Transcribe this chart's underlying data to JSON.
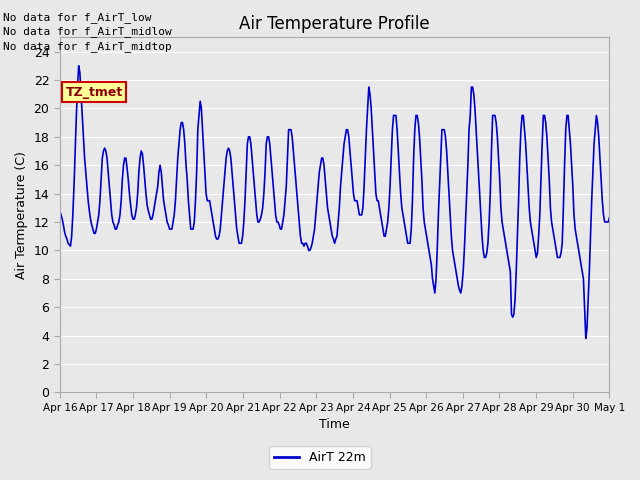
{
  "title": "Air Temperature Profile",
  "xlabel": "Time",
  "ylabel": "Air Termperature (C)",
  "legend_label": "AirT 22m",
  "legend_line_color": "#0000cc",
  "line_color": "#0000cc",
  "plot_bg_color": "#e8e8e8",
  "ylim": [
    0,
    25
  ],
  "yticks": [
    0,
    2,
    4,
    6,
    8,
    10,
    12,
    14,
    16,
    18,
    20,
    22,
    24
  ],
  "annotations": [
    "No data for f_AirT_low",
    "No data for f_AirT_midlow",
    "No data for f_AirT_midtop"
  ],
  "tz_label": "TZ_tmet",
  "x_labels": [
    "Apr 16",
    "Apr 17",
    "Apr 18",
    "Apr 19",
    "Apr 20",
    "Apr 21",
    "Apr 22",
    "Apr 23",
    "Apr 24",
    "Apr 25",
    "Apr 26",
    "Apr 27",
    "Apr 28",
    "Apr 29",
    "Apr 30",
    "May 1"
  ],
  "temp_data": [
    12.8,
    12.5,
    12.2,
    11.8,
    11.3,
    11.0,
    10.8,
    10.5,
    10.4,
    10.3,
    11.0,
    12.5,
    14.5,
    17.0,
    19.5,
    21.5,
    23.0,
    22.5,
    21.0,
    19.5,
    18.0,
    16.5,
    15.5,
    14.5,
    13.5,
    12.8,
    12.2,
    11.8,
    11.5,
    11.2,
    11.2,
    11.5,
    12.0,
    12.5,
    13.5,
    15.0,
    16.5,
    17.0,
    17.2,
    17.0,
    16.5,
    15.5,
    14.5,
    13.5,
    12.5,
    12.0,
    11.8,
    11.5,
    11.5,
    11.8,
    12.0,
    12.5,
    13.5,
    15.0,
    16.0,
    16.5,
    16.5,
    15.8,
    15.0,
    14.0,
    13.2,
    12.5,
    12.2,
    12.2,
    12.5,
    13.0,
    14.0,
    15.5,
    16.5,
    17.0,
    16.8,
    16.0,
    15.0,
    14.0,
    13.2,
    12.8,
    12.5,
    12.2,
    12.2,
    12.5,
    13.0,
    13.5,
    14.0,
    14.5,
    15.5,
    16.0,
    15.5,
    14.5,
    13.5,
    13.0,
    12.5,
    12.0,
    11.8,
    11.5,
    11.5,
    11.5,
    12.0,
    12.5,
    13.5,
    15.0,
    16.5,
    17.5,
    18.5,
    19.0,
    19.0,
    18.5,
    17.5,
    16.0,
    15.0,
    13.5,
    12.5,
    11.5,
    11.5,
    11.5,
    12.0,
    13.5,
    15.5,
    18.5,
    19.5,
    20.5,
    20.0,
    18.5,
    17.0,
    15.5,
    14.0,
    13.5,
    13.5,
    13.5,
    13.0,
    12.5,
    12.0,
    11.5,
    11.0,
    10.8,
    10.8,
    11.0,
    11.5,
    12.5,
    13.5,
    14.5,
    15.5,
    16.5,
    17.0,
    17.2,
    17.0,
    16.5,
    15.5,
    14.5,
    13.5,
    12.5,
    11.5,
    11.0,
    10.5,
    10.5,
    10.5,
    11.0,
    12.0,
    13.5,
    15.5,
    17.5,
    18.0,
    18.0,
    17.5,
    16.5,
    15.5,
    14.5,
    13.5,
    12.5,
    12.0,
    12.0,
    12.2,
    12.5,
    13.0,
    14.0,
    15.5,
    17.5,
    18.0,
    18.0,
    17.5,
    16.5,
    15.5,
    14.5,
    13.5,
    12.5,
    12.0,
    12.0,
    11.8,
    11.5,
    11.5,
    12.0,
    12.5,
    13.5,
    14.5,
    16.5,
    18.5,
    18.5,
    18.5,
    18.0,
    17.0,
    16.0,
    15.0,
    14.0,
    13.0,
    12.0,
    11.0,
    10.5,
    10.5,
    10.3,
    10.5,
    10.5,
    10.3,
    10.0,
    10.0,
    10.2,
    10.5,
    11.0,
    11.5,
    12.5,
    13.5,
    14.5,
    15.5,
    16.0,
    16.5,
    16.5,
    16.0,
    15.0,
    14.0,
    13.0,
    12.5,
    12.0,
    11.5,
    11.0,
    10.8,
    10.5,
    10.8,
    11.0,
    12.0,
    13.0,
    14.5,
    15.5,
    16.5,
    17.5,
    18.0,
    18.5,
    18.5,
    18.0,
    17.0,
    16.0,
    15.0,
    14.0,
    13.5,
    13.5,
    13.5,
    13.0,
    12.5,
    12.5,
    12.5,
    13.0,
    14.5,
    16.5,
    18.5,
    20.0,
    21.5,
    21.0,
    20.0,
    18.5,
    17.0,
    15.5,
    14.0,
    13.5,
    13.5,
    13.0,
    12.5,
    12.0,
    11.5,
    11.0,
    11.0,
    11.5,
    12.0,
    13.0,
    14.5,
    16.5,
    18.5,
    19.5,
    19.5,
    19.5,
    18.5,
    17.0,
    15.5,
    14.0,
    13.0,
    12.5,
    12.0,
    11.5,
    11.0,
    10.5,
    10.5,
    10.5,
    11.5,
    13.5,
    16.5,
    18.5,
    19.5,
    19.5,
    19.0,
    18.0,
    16.5,
    15.0,
    13.0,
    12.0,
    11.5,
    11.0,
    10.5,
    10.0,
    9.5,
    9.0,
    8.0,
    7.5,
    7.0,
    8.0,
    10.0,
    12.5,
    14.5,
    16.5,
    18.5,
    18.5,
    18.5,
    18.0,
    17.0,
    15.5,
    14.0,
    12.5,
    11.0,
    10.0,
    9.5,
    9.0,
    8.5,
    8.0,
    7.5,
    7.2,
    7.0,
    7.5,
    8.5,
    10.0,
    12.0,
    14.0,
    16.0,
    18.5,
    19.5,
    21.5,
    21.5,
    21.0,
    20.0,
    18.5,
    17.0,
    15.5,
    14.0,
    12.5,
    11.0,
    10.0,
    9.5,
    9.5,
    9.8,
    10.5,
    12.0,
    14.0,
    17.0,
    19.5,
    19.5,
    19.5,
    19.0,
    18.0,
    16.5,
    15.0,
    13.0,
    12.0,
    11.5,
    11.0,
    10.5,
    10.0,
    9.5,
    9.0,
    8.5,
    5.5,
    5.3,
    5.5,
    6.5,
    8.5,
    11.0,
    13.5,
    16.5,
    18.5,
    19.5,
    19.5,
    18.5,
    17.5,
    16.0,
    14.5,
    13.0,
    12.0,
    11.5,
    11.0,
    10.5,
    10.0,
    9.5,
    9.8,
    11.0,
    12.5,
    15.0,
    17.5,
    19.5,
    19.5,
    19.0,
    18.0,
    16.5,
    15.0,
    13.0,
    12.0,
    11.5,
    11.0,
    10.5,
    10.0,
    9.5,
    9.5,
    9.5,
    9.8,
    10.5,
    13.0,
    16.0,
    18.5,
    19.5,
    19.5,
    18.5,
    17.5,
    16.0,
    14.5,
    12.5,
    11.5,
    11.0,
    10.5,
    10.0,
    9.5,
    9.0,
    8.5,
    8.0,
    5.8,
    3.8,
    4.5,
    6.5,
    8.5,
    11.0,
    13.5,
    15.5,
    17.5,
    18.5,
    19.5,
    19.0,
    18.0,
    16.5,
    15.0,
    13.5,
    12.5,
    12.0,
    12.0,
    12.0,
    12.0,
    12.3
  ]
}
